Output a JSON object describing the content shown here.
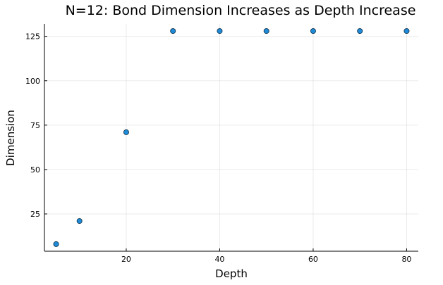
{
  "chart_data": {
    "type": "scatter",
    "title": "N=12: Bond Dimension Increases as Depth Increase",
    "xlabel": "Depth",
    "ylabel": "Dimension",
    "x": [
      5,
      10,
      20,
      30,
      40,
      50,
      60,
      70,
      80
    ],
    "y": [
      8,
      21,
      71,
      128,
      128,
      128,
      128,
      128,
      128
    ],
    "xlim": [
      2.5,
      82.5
    ],
    "ylim": [
      4,
      132
    ],
    "xticks": [
      20,
      40,
      60,
      80
    ],
    "yticks": [
      25,
      50,
      75,
      100,
      125
    ],
    "grid": true,
    "legend": false,
    "marker_color": "#1f8bd8"
  }
}
